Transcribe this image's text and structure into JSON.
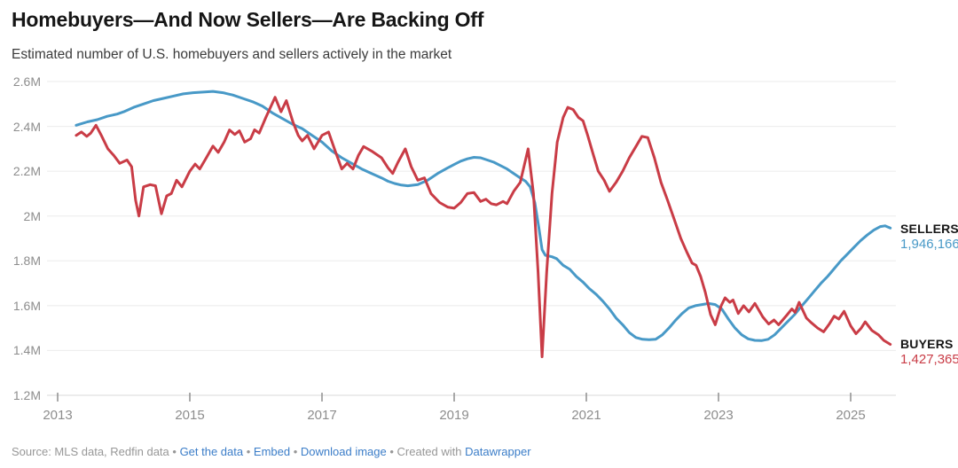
{
  "header": {
    "title": "Homebuyers—And Now Sellers—Are Backing Off",
    "subtitle": "Estimated number of U.S. homebuyers and sellers actively in the market"
  },
  "colors": {
    "sellers_line": "#4899c7",
    "buyers_line": "#c93c46",
    "gridline": "#ebebeb",
    "axis_line": "#d8d8d8",
    "tick": "#8f8f8f",
    "axis_text": "#8d8d8d",
    "link_blue": "#3b7dc8",
    "footer_gray": "#979797"
  },
  "chart_data": {
    "type": "line",
    "title": "Homebuyers—And Now Sellers—Are Backing Off",
    "subtitle": "Estimated number of U.S. homebuyers and sellers actively in the market",
    "xlabel": "",
    "ylabel": "",
    "grid": true,
    "legend_position": "right-end-of-line",
    "xlim": [
      2012.84,
      2025.66
    ],
    "ylim": [
      1200000,
      2600000
    ],
    "y_axis": {
      "labels": [
        "2.6M",
        "2.4M",
        "2.2M",
        "2M",
        "1.8M",
        "1.6M",
        "1.4M",
        "1.2M"
      ],
      "values": [
        2.6,
        2.4,
        2.2,
        2.0,
        1.8,
        1.6,
        1.4,
        1.2
      ]
    },
    "x_axis": {
      "labels": [
        "2013",
        "2015",
        "2017",
        "2019",
        "2021",
        "2023",
        "2025"
      ],
      "values": [
        2013,
        2015,
        2017,
        2019,
        2021,
        2023,
        2025
      ]
    },
    "series": [
      {
        "name": "SELLERS",
        "end_value": 1946166,
        "end_value_label": "1,946,166",
        "color": "#4899c7",
        "points_unit": "millions",
        "points": [
          [
            2013.28,
            2.405
          ],
          [
            2013.45,
            2.42
          ],
          [
            2013.6,
            2.43
          ],
          [
            2013.75,
            2.445
          ],
          [
            2013.9,
            2.455
          ],
          [
            2014.0,
            2.465
          ],
          [
            2014.15,
            2.485
          ],
          [
            2014.3,
            2.5
          ],
          [
            2014.45,
            2.515
          ],
          [
            2014.6,
            2.525
          ],
          [
            2014.75,
            2.535
          ],
          [
            2014.9,
            2.545
          ],
          [
            2015.05,
            2.55
          ],
          [
            2015.2,
            2.553
          ],
          [
            2015.35,
            2.556
          ],
          [
            2015.5,
            2.55
          ],
          [
            2015.65,
            2.54
          ],
          [
            2015.8,
            2.525
          ],
          [
            2015.95,
            2.51
          ],
          [
            2016.1,
            2.49
          ],
          [
            2016.25,
            2.46
          ],
          [
            2016.4,
            2.435
          ],
          [
            2016.55,
            2.41
          ],
          [
            2016.7,
            2.39
          ],
          [
            2016.85,
            2.36
          ],
          [
            2017.0,
            2.33
          ],
          [
            2017.15,
            2.29
          ],
          [
            2017.3,
            2.26
          ],
          [
            2017.45,
            2.235
          ],
          [
            2017.6,
            2.21
          ],
          [
            2017.75,
            2.19
          ],
          [
            2017.9,
            2.17
          ],
          [
            2018.0,
            2.155
          ],
          [
            2018.1,
            2.145
          ],
          [
            2018.2,
            2.138
          ],
          [
            2018.3,
            2.135
          ],
          [
            2018.45,
            2.14
          ],
          [
            2018.6,
            2.16
          ],
          [
            2018.75,
            2.19
          ],
          [
            2018.9,
            2.215
          ],
          [
            2019.0,
            2.23
          ],
          [
            2019.1,
            2.245
          ],
          [
            2019.2,
            2.255
          ],
          [
            2019.3,
            2.262
          ],
          [
            2019.4,
            2.26
          ],
          [
            2019.5,
            2.25
          ],
          [
            2019.6,
            2.24
          ],
          [
            2019.7,
            2.225
          ],
          [
            2019.8,
            2.21
          ],
          [
            2019.9,
            2.19
          ],
          [
            2020.0,
            2.17
          ],
          [
            2020.08,
            2.155
          ],
          [
            2020.15,
            2.13
          ],
          [
            2020.22,
            2.06
          ],
          [
            2020.28,
            1.95
          ],
          [
            2020.33,
            1.85
          ],
          [
            2020.38,
            1.825
          ],
          [
            2020.48,
            1.818
          ],
          [
            2020.55,
            1.81
          ],
          [
            2020.65,
            1.78
          ],
          [
            2020.75,
            1.762
          ],
          [
            2020.85,
            1.73
          ],
          [
            2020.95,
            1.705
          ],
          [
            2021.05,
            1.675
          ],
          [
            2021.15,
            1.65
          ],
          [
            2021.25,
            1.62
          ],
          [
            2021.35,
            1.585
          ],
          [
            2021.45,
            1.545
          ],
          [
            2021.55,
            1.515
          ],
          [
            2021.65,
            1.48
          ],
          [
            2021.75,
            1.458
          ],
          [
            2021.85,
            1.45
          ],
          [
            2021.95,
            1.448
          ],
          [
            2022.05,
            1.45
          ],
          [
            2022.15,
            1.47
          ],
          [
            2022.25,
            1.5
          ],
          [
            2022.35,
            1.535
          ],
          [
            2022.45,
            1.565
          ],
          [
            2022.55,
            1.59
          ],
          [
            2022.65,
            1.6
          ],
          [
            2022.75,
            1.605
          ],
          [
            2022.85,
            1.61
          ],
          [
            2022.95,
            1.605
          ],
          [
            2023.05,
            1.585
          ],
          [
            2023.15,
            1.54
          ],
          [
            2023.25,
            1.5
          ],
          [
            2023.35,
            1.47
          ],
          [
            2023.45,
            1.452
          ],
          [
            2023.55,
            1.445
          ],
          [
            2023.65,
            1.444
          ],
          [
            2023.75,
            1.45
          ],
          [
            2023.85,
            1.47
          ],
          [
            2023.95,
            1.5
          ],
          [
            2024.05,
            1.53
          ],
          [
            2024.15,
            1.56
          ],
          [
            2024.25,
            1.595
          ],
          [
            2024.35,
            1.63
          ],
          [
            2024.45,
            1.665
          ],
          [
            2024.55,
            1.7
          ],
          [
            2024.65,
            1.73
          ],
          [
            2024.75,
            1.765
          ],
          [
            2024.85,
            1.8
          ],
          [
            2024.95,
            1.83
          ],
          [
            2025.05,
            1.86
          ],
          [
            2025.15,
            1.89
          ],
          [
            2025.25,
            1.915
          ],
          [
            2025.35,
            1.937
          ],
          [
            2025.45,
            1.953
          ],
          [
            2025.52,
            1.956
          ],
          [
            2025.6,
            1.946166
          ]
        ]
      },
      {
        "name": "BUYERS",
        "end_value": 1427365,
        "end_value_label": "1,427,365",
        "color": "#c93c46",
        "points_unit": "millions",
        "points": [
          [
            2013.28,
            2.36
          ],
          [
            2013.36,
            2.375
          ],
          [
            2013.44,
            2.355
          ],
          [
            2013.5,
            2.37
          ],
          [
            2013.58,
            2.405
          ],
          [
            2013.66,
            2.36
          ],
          [
            2013.76,
            2.3
          ],
          [
            2013.85,
            2.27
          ],
          [
            2013.94,
            2.235
          ],
          [
            2014.05,
            2.25
          ],
          [
            2014.12,
            2.22
          ],
          [
            2014.18,
            2.07
          ],
          [
            2014.23,
            2.0
          ],
          [
            2014.3,
            2.13
          ],
          [
            2014.4,
            2.14
          ],
          [
            2014.48,
            2.135
          ],
          [
            2014.57,
            2.01
          ],
          [
            2014.65,
            2.09
          ],
          [
            2014.72,
            2.1
          ],
          [
            2014.8,
            2.16
          ],
          [
            2014.88,
            2.13
          ],
          [
            2015.0,
            2.2
          ],
          [
            2015.08,
            2.232
          ],
          [
            2015.15,
            2.21
          ],
          [
            2015.25,
            2.26
          ],
          [
            2015.35,
            2.312
          ],
          [
            2015.43,
            2.284
          ],
          [
            2015.52,
            2.33
          ],
          [
            2015.6,
            2.384
          ],
          [
            2015.68,
            2.364
          ],
          [
            2015.75,
            2.38
          ],
          [
            2015.83,
            2.33
          ],
          [
            2015.92,
            2.345
          ],
          [
            2015.98,
            2.385
          ],
          [
            2016.05,
            2.37
          ],
          [
            2016.15,
            2.44
          ],
          [
            2016.29,
            2.53
          ],
          [
            2016.38,
            2.465
          ],
          [
            2016.46,
            2.515
          ],
          [
            2016.56,
            2.42
          ],
          [
            2016.64,
            2.36
          ],
          [
            2016.7,
            2.335
          ],
          [
            2016.78,
            2.36
          ],
          [
            2016.88,
            2.3
          ],
          [
            2017.0,
            2.36
          ],
          [
            2017.1,
            2.375
          ],
          [
            2017.2,
            2.29
          ],
          [
            2017.3,
            2.21
          ],
          [
            2017.38,
            2.235
          ],
          [
            2017.47,
            2.21
          ],
          [
            2017.55,
            2.27
          ],
          [
            2017.63,
            2.31
          ],
          [
            2017.75,
            2.29
          ],
          [
            2017.9,
            2.26
          ],
          [
            2018.0,
            2.215
          ],
          [
            2018.07,
            2.19
          ],
          [
            2018.15,
            2.24
          ],
          [
            2018.26,
            2.3
          ],
          [
            2018.35,
            2.22
          ],
          [
            2018.45,
            2.16
          ],
          [
            2018.55,
            2.17
          ],
          [
            2018.65,
            2.1
          ],
          [
            2018.78,
            2.06
          ],
          [
            2018.9,
            2.04
          ],
          [
            2019.0,
            2.035
          ],
          [
            2019.1,
            2.06
          ],
          [
            2019.2,
            2.1
          ],
          [
            2019.3,
            2.105
          ],
          [
            2019.4,
            2.065
          ],
          [
            2019.48,
            2.075
          ],
          [
            2019.56,
            2.055
          ],
          [
            2019.64,
            2.05
          ],
          [
            2019.74,
            2.065
          ],
          [
            2019.8,
            2.055
          ],
          [
            2019.9,
            2.11
          ],
          [
            2020.0,
            2.15
          ],
          [
            2020.12,
            2.3
          ],
          [
            2020.2,
            2.1
          ],
          [
            2020.27,
            1.75
          ],
          [
            2020.33,
            1.372
          ],
          [
            2020.4,
            1.75
          ],
          [
            2020.48,
            2.1
          ],
          [
            2020.56,
            2.33
          ],
          [
            2020.65,
            2.44
          ],
          [
            2020.72,
            2.485
          ],
          [
            2020.8,
            2.475
          ],
          [
            2020.88,
            2.44
          ],
          [
            2020.95,
            2.425
          ],
          [
            2021.02,
            2.36
          ],
          [
            2021.1,
            2.28
          ],
          [
            2021.18,
            2.2
          ],
          [
            2021.27,
            2.16
          ],
          [
            2021.35,
            2.11
          ],
          [
            2021.45,
            2.15
          ],
          [
            2021.55,
            2.2
          ],
          [
            2021.65,
            2.26
          ],
          [
            2021.75,
            2.31
          ],
          [
            2021.84,
            2.355
          ],
          [
            2021.93,
            2.35
          ],
          [
            2022.03,
            2.26
          ],
          [
            2022.13,
            2.15
          ],
          [
            2022.23,
            2.07
          ],
          [
            2022.33,
            1.985
          ],
          [
            2022.43,
            1.9
          ],
          [
            2022.52,
            1.84
          ],
          [
            2022.6,
            1.79
          ],
          [
            2022.66,
            1.78
          ],
          [
            2022.73,
            1.73
          ],
          [
            2022.8,
            1.66
          ],
          [
            2022.88,
            1.56
          ],
          [
            2022.95,
            1.515
          ],
          [
            2023.04,
            1.6
          ],
          [
            2023.1,
            1.635
          ],
          [
            2023.17,
            1.615
          ],
          [
            2023.22,
            1.625
          ],
          [
            2023.3,
            1.565
          ],
          [
            2023.38,
            1.6
          ],
          [
            2023.46,
            1.572
          ],
          [
            2023.55,
            1.61
          ],
          [
            2023.67,
            1.55
          ],
          [
            2023.76,
            1.518
          ],
          [
            2023.84,
            1.536
          ],
          [
            2023.91,
            1.515
          ],
          [
            2024.04,
            1.56
          ],
          [
            2024.11,
            1.585
          ],
          [
            2024.16,
            1.57
          ],
          [
            2024.22,
            1.615
          ],
          [
            2024.33,
            1.545
          ],
          [
            2024.4,
            1.525
          ],
          [
            2024.5,
            1.5
          ],
          [
            2024.59,
            1.483
          ],
          [
            2024.68,
            1.52
          ],
          [
            2024.75,
            1.553
          ],
          [
            2024.82,
            1.54
          ],
          [
            2024.9,
            1.575
          ],
          [
            2025.0,
            1.51
          ],
          [
            2025.08,
            1.475
          ],
          [
            2025.16,
            1.5
          ],
          [
            2025.22,
            1.528
          ],
          [
            2025.32,
            1.49
          ],
          [
            2025.42,
            1.47
          ],
          [
            2025.5,
            1.445
          ],
          [
            2025.6,
            1.427365
          ]
        ]
      }
    ]
  },
  "footer": {
    "segments": [
      {
        "text": "Source: MLS data, Redfin data",
        "link": false,
        "name": "source-text"
      },
      {
        "text": " • ",
        "link": false,
        "name": "separator"
      },
      {
        "text": "Get the data",
        "link": true,
        "name": "get-the-data-link"
      },
      {
        "text": " • ",
        "link": false,
        "name": "separator"
      },
      {
        "text": "Embed",
        "link": true,
        "name": "embed-link"
      },
      {
        "text": " • ",
        "link": false,
        "name": "separator"
      },
      {
        "text": "Download image",
        "link": true,
        "name": "download-image-link"
      },
      {
        "text": " • ",
        "link": false,
        "name": "separator"
      },
      {
        "text": "Created with ",
        "link": false,
        "name": "created-with-text"
      },
      {
        "text": "Datawrapper",
        "link": true,
        "name": "datawrapper-link"
      }
    ]
  }
}
